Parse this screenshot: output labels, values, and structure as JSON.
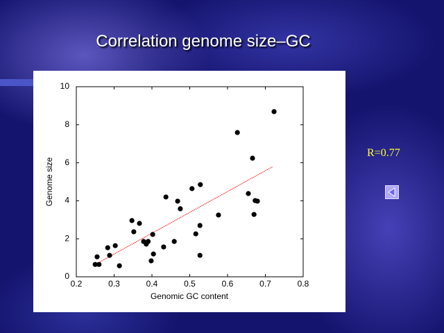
{
  "chart_data": {
    "type": "scatter",
    "title": "Correlation genome size–GC",
    "xlabel": "Genomic GC content",
    "ylabel": "Genome size",
    "annotation": "R=0.77",
    "color": "#000000",
    "x": [
      0.25,
      0.255,
      0.26,
      0.283,
      0.288,
      0.303,
      0.314,
      0.347,
      0.352,
      0.367,
      0.378,
      0.385,
      0.39,
      0.398,
      0.402,
      0.404,
      0.431,
      0.437,
      0.459,
      0.468,
      0.475,
      0.506,
      0.516,
      0.527,
      0.527,
      0.528,
      0.576,
      0.626,
      0.655,
      0.666,
      0.67,
      0.673,
      0.679,
      0.723
    ],
    "values": [
      0.65,
      1.05,
      0.65,
      1.53,
      1.13,
      1.64,
      0.58,
      2.96,
      2.37,
      2.81,
      1.86,
      1.72,
      1.86,
      0.84,
      2.23,
      1.2,
      1.57,
      4.2,
      1.86,
      3.98,
      3.58,
      4.64,
      2.26,
      2.7,
      1.13,
      4.85,
      3.25,
      7.59,
      4.38,
      6.24,
      3.28,
      4.01,
      3.98,
      8.69
    ],
    "trendline": {
      "x": [
        0.25,
        0.72
      ],
      "y": [
        0.65,
        5.8
      ],
      "color": "#ff0000"
    },
    "xlim": [
      0.2,
      0.8
    ],
    "xticks": [
      0.2,
      0.3,
      0.4,
      0.5,
      0.6,
      0.7,
      0.8
    ],
    "ylim": [
      0,
      10
    ],
    "yticks": [
      0,
      2,
      4,
      6,
      8,
      10
    ]
  }
}
